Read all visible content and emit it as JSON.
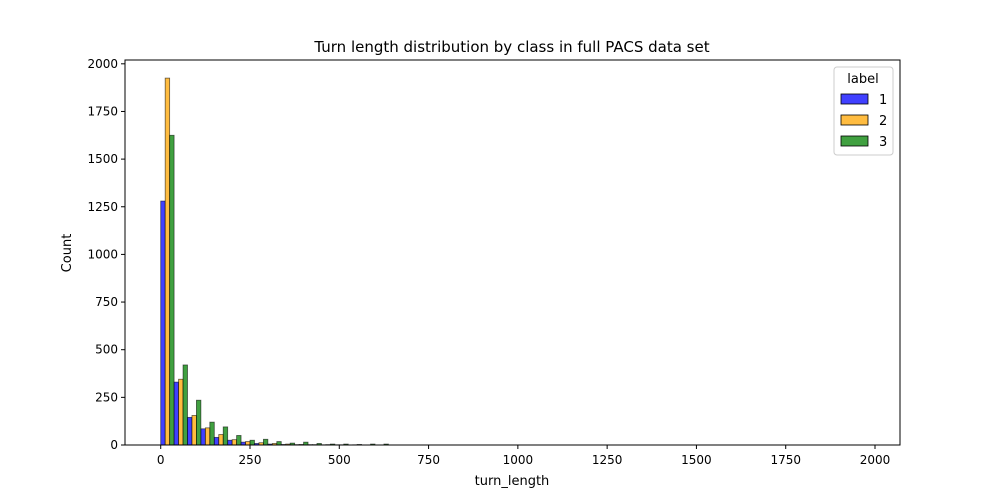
{
  "chart_data": {
    "type": "bar",
    "histogram": true,
    "title": "Turn length distribution by class in full PACS data set",
    "xlabel": "turn_length",
    "ylabel": "Count",
    "xlim": [
      -100,
      2070
    ],
    "ylim": [
      0,
      2020
    ],
    "xticks": [
      0,
      250,
      500,
      750,
      1000,
      1250,
      1500,
      1750,
      2000
    ],
    "xtick_labels": [
      "0",
      "250",
      "500",
      "750",
      "1000",
      "1250",
      "1500",
      "1750",
      "2000"
    ],
    "yticks": [
      0,
      250,
      500,
      750,
      1000,
      1250,
      1500,
      1750,
      2000
    ],
    "ytick_labels": [
      "0",
      "250",
      "500",
      "750",
      "1000",
      "1250",
      "1500",
      "1750",
      "2000"
    ],
    "bin_width": 37.5,
    "bin_starts": [
      0,
      37.5,
      75,
      112.5,
      150,
      187.5,
      225,
      262.5,
      300,
      337.5,
      375,
      412.5,
      450,
      487.5,
      525,
      562.5,
      600
    ],
    "series": [
      {
        "name": "1",
        "color": "#0000ff",
        "values": [
          1280,
          330,
          145,
          85,
          40,
          25,
          15,
          8,
          5,
          3,
          2,
          2,
          1,
          1,
          0,
          0,
          0
        ]
      },
      {
        "name": "2",
        "color": "#ffa500",
        "values": [
          1925,
          345,
          155,
          90,
          55,
          28,
          18,
          12,
          8,
          5,
          3,
          2,
          2,
          1,
          1,
          0,
          0
        ]
      },
      {
        "name": "3",
        "color": "#008000",
        "values": [
          1625,
          420,
          235,
          120,
          95,
          50,
          25,
          30,
          18,
          10,
          15,
          8,
          5,
          5,
          3,
          5,
          5
        ]
      }
    ],
    "legend": {
      "title": "label",
      "position": "top-right"
    },
    "grid": false
  }
}
